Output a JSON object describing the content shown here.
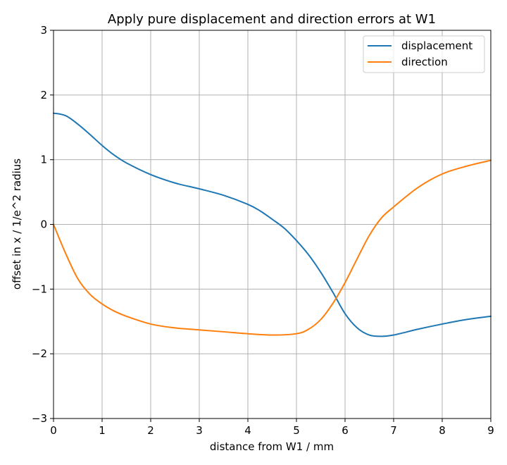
{
  "chart_data": {
    "type": "line",
    "title": "Apply pure displacement and direction errors at W1",
    "xlabel": "distance from W1 / mm",
    "ylabel": "offset in x / 1/e^2 radius",
    "xlim": [
      0,
      9
    ],
    "ylim": [
      -3,
      3
    ],
    "xticks": [
      0,
      1,
      2,
      3,
      4,
      5,
      6,
      7,
      8,
      9
    ],
    "xtick_labels": [
      "0",
      "1",
      "2",
      "3",
      "4",
      "5",
      "6",
      "7",
      "8",
      "9"
    ],
    "yticks": [
      -3,
      -2,
      -1,
      0,
      1,
      2,
      3
    ],
    "ytick_labels": [
      "−3",
      "−2",
      "−1",
      "0",
      "1",
      "2",
      "3"
    ],
    "grid": true,
    "legend_position": "top-right",
    "series": [
      {
        "name": "displacement",
        "color": "#1f77b4",
        "x": [
          0,
          0.25,
          0.5,
          0.75,
          1,
          1.25,
          1.5,
          2,
          2.5,
          3,
          3.5,
          4,
          4.25,
          4.5,
          4.75,
          5,
          5.25,
          5.5,
          5.75,
          6,
          6.25,
          6.5,
          6.75,
          7,
          7.5,
          8,
          8.5,
          9
        ],
        "y": [
          1.72,
          1.68,
          1.55,
          1.39,
          1.22,
          1.07,
          0.95,
          0.77,
          0.64,
          0.55,
          0.45,
          0.31,
          0.21,
          0.08,
          -0.06,
          -0.25,
          -0.47,
          -0.74,
          -1.05,
          -1.38,
          -1.6,
          -1.71,
          -1.73,
          -1.71,
          -1.62,
          -1.54,
          -1.47,
          -1.42
        ]
      },
      {
        "name": "direction",
        "color": "#ff7f0e",
        "x": [
          0,
          0.25,
          0.5,
          0.75,
          1,
          1.25,
          1.5,
          2,
          2.5,
          3,
          3.5,
          4,
          4.5,
          5,
          5.25,
          5.5,
          5.75,
          6,
          6.25,
          6.5,
          6.75,
          7,
          7.5,
          8,
          8.5,
          9
        ],
        "y": [
          0,
          -0.45,
          -0.84,
          -1.08,
          -1.23,
          -1.34,
          -1.42,
          -1.54,
          -1.6,
          -1.63,
          -1.66,
          -1.69,
          -1.71,
          -1.69,
          -1.62,
          -1.47,
          -1.22,
          -0.9,
          -0.53,
          -0.17,
          0.1,
          0.27,
          0.57,
          0.78,
          0.9,
          0.99
        ]
      }
    ]
  }
}
